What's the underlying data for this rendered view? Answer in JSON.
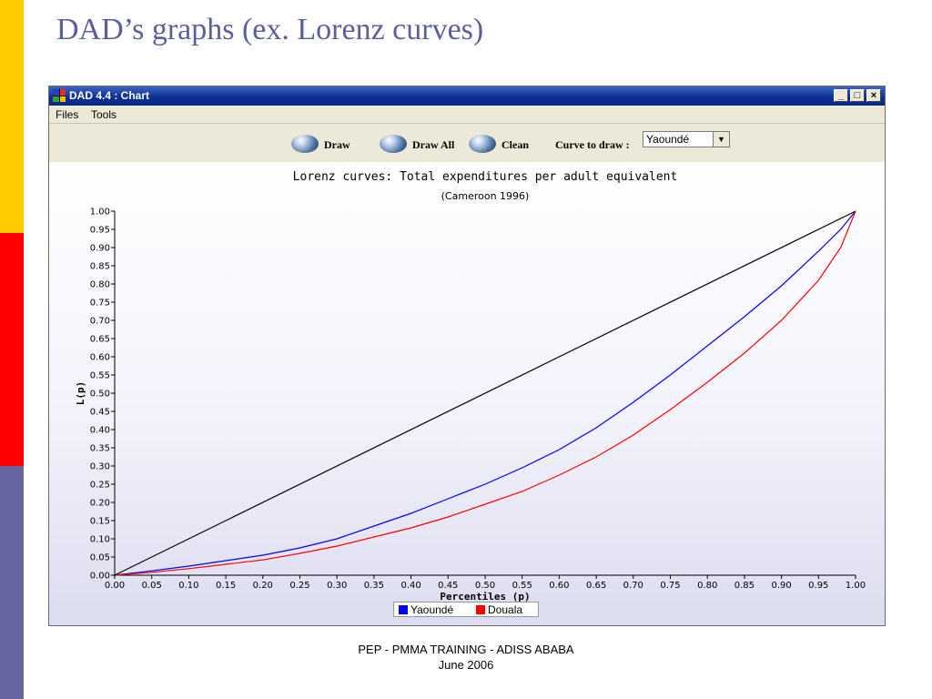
{
  "slide": {
    "title": "DAD’s graphs  (ex. Lorenz curves)"
  },
  "window": {
    "title": "DAD 4.4 : Chart",
    "controls": {
      "minimize": "_",
      "maximize": "□",
      "close": "×"
    }
  },
  "menu": {
    "files": "Files",
    "tools": "Tools"
  },
  "toolbar": {
    "draw_label": "Draw",
    "draw_all_label": "Draw All",
    "clean_label": "Clean",
    "curve_label": "Curve to draw :",
    "curve_value": "Yaoundé"
  },
  "footer": {
    "line1": "PEP - PMMA TRAINING - ADISS ABABA",
    "line2": "June 2006"
  },
  "colors": {
    "title": "#5b5f9e",
    "yaounde": "#0000ff",
    "douala": "#ff0000",
    "stripe_yellow": "#ffcc00",
    "stripe_red": "#ff0000",
    "stripe_slate": "#6666a0"
  },
  "chart_data": {
    "type": "line",
    "title": "Lorenz curves: Total expenditures per adult equivalent",
    "subtitle": "(Cameroon 1996)",
    "xlabel": "Percentiles (p)",
    "ylabel": "L(p)",
    "xlim": [
      0,
      1
    ],
    "ylim": [
      0,
      1
    ],
    "xticks": [
      "0.00",
      "0.05",
      "0.10",
      "0.15",
      "0.20",
      "0.25",
      "0.30",
      "0.35",
      "0.40",
      "0.45",
      "0.50",
      "0.55",
      "0.60",
      "0.65",
      "0.70",
      "0.75",
      "0.80",
      "0.85",
      "0.90",
      "0.95",
      "1.00"
    ],
    "yticks": [
      "0.00",
      "0.05",
      "0.10",
      "0.15",
      "0.20",
      "0.25",
      "0.30",
      "0.35",
      "0.40",
      "0.45",
      "0.50",
      "0.55",
      "0.60",
      "0.65",
      "0.70",
      "0.75",
      "0.80",
      "0.85",
      "0.90",
      "0.95",
      "1.00"
    ],
    "legend_position": "bottom",
    "x": [
      0,
      0.05,
      0.1,
      0.15,
      0.2,
      0.25,
      0.3,
      0.35,
      0.4,
      0.45,
      0.5,
      0.55,
      0.6,
      0.65,
      0.7,
      0.75,
      0.8,
      0.85,
      0.9,
      0.95,
      0.98,
      1.0
    ],
    "series": [
      {
        "name": "Yaoundé",
        "values": [
          0,
          0.012,
          0.025,
          0.04,
          0.055,
          0.075,
          0.1,
          0.135,
          0.17,
          0.21,
          0.25,
          0.295,
          0.345,
          0.405,
          0.475,
          0.55,
          0.63,
          0.71,
          0.795,
          0.89,
          0.95,
          1.0
        ]
      },
      {
        "name": "Douala",
        "values": [
          0,
          0.008,
          0.018,
          0.03,
          0.042,
          0.06,
          0.08,
          0.105,
          0.13,
          0.16,
          0.195,
          0.23,
          0.275,
          0.325,
          0.385,
          0.455,
          0.53,
          0.61,
          0.7,
          0.81,
          0.9,
          1.0
        ]
      },
      {
        "values": [
          0,
          1
        ],
        "x": [
          0,
          1
        ]
      }
    ]
  }
}
